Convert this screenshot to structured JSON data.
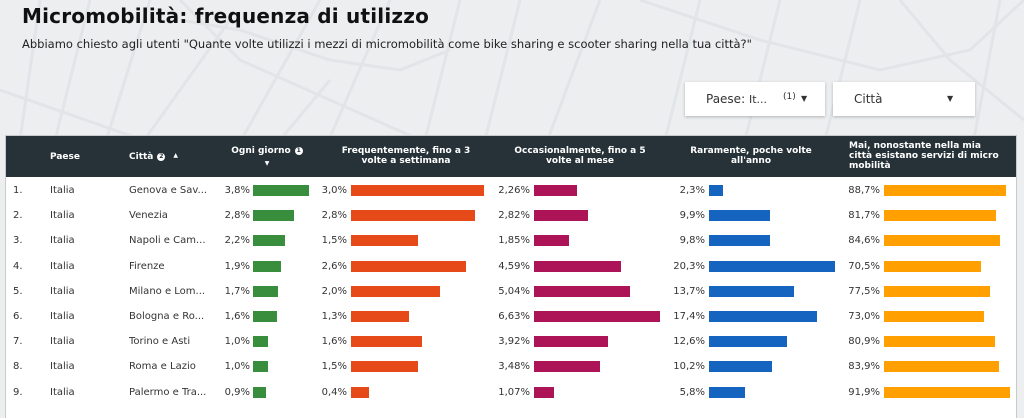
{
  "header": {
    "title": "Micromobilità: frequenza di utilizzo",
    "subtitle": "Abbiamo chiesto agli utenti \"Quante volte utilizzi i mezzi di micromobilità come bike sharing e scooter sharing nella tua città?\""
  },
  "filters": {
    "paese": {
      "label": "Paese:",
      "value": "It...",
      "count": "(1)",
      "icon": "caret-down-icon"
    },
    "citta": {
      "label": "Città",
      "icon": "caret-down-icon"
    }
  },
  "table": {
    "columns": {
      "paese": "Paese",
      "citta": "Città",
      "ogni_giorno": "Ogni giorno",
      "frequentemente": [
        "Frequentemente, fino a 3",
        "volte a settimana"
      ],
      "occasionalmente": [
        "Occasionalmente, fino a 5",
        "volte al mese"
      ],
      "raramente": [
        "Raramente, poche volte",
        "all'anno"
      ],
      "mai": [
        "Mai, nonostante nella mia",
        "città esistano servizi di micro",
        "mobilità"
      ]
    },
    "header_icons": {
      "citta_info": "2",
      "citta_sort": "▲",
      "ogni_info": "1",
      "ogni_sort": "▼"
    },
    "colors": {
      "ogni_giorno": "#388e3c",
      "frequentemente": "#e64a19",
      "occasionalmente": "#ad1457",
      "raramente": "#1565c0",
      "mai": "#ffa000",
      "header_bg": "#263238"
    },
    "rows": [
      {
        "rank": "1.",
        "paese": "Italia",
        "citta": "Genova e Sav...",
        "ogni": "3,8%",
        "freq": "3,0%",
        "occ": "2,26%",
        "rar": "2,3%",
        "mai": "88,7%"
      },
      {
        "rank": "2.",
        "paese": "Italia",
        "citta": "Venezia",
        "ogni": "2,8%",
        "freq": "2,8%",
        "occ": "2,82%",
        "rar": "9,9%",
        "mai": "81,7%"
      },
      {
        "rank": "3.",
        "paese": "Italia",
        "citta": "Napoli e Cam...",
        "ogni": "2,2%",
        "freq": "1,5%",
        "occ": "1,85%",
        "rar": "9,8%",
        "mai": "84,6%"
      },
      {
        "rank": "4.",
        "paese": "Italia",
        "citta": "Firenze",
        "ogni": "1,9%",
        "freq": "2,6%",
        "occ": "4,59%",
        "rar": "20,3%",
        "mai": "70,5%"
      },
      {
        "rank": "5.",
        "paese": "Italia",
        "citta": "Milano e Lom...",
        "ogni": "1,7%",
        "freq": "2,0%",
        "occ": "5,04%",
        "rar": "13,7%",
        "mai": "77,5%"
      },
      {
        "rank": "6.",
        "paese": "Italia",
        "citta": "Bologna e Ro...",
        "ogni": "1,6%",
        "freq": "1,3%",
        "occ": "6,63%",
        "rar": "17,4%",
        "mai": "73,0%"
      },
      {
        "rank": "7.",
        "paese": "Italia",
        "citta": "Torino e Asti",
        "ogni": "1,0%",
        "freq": "1,6%",
        "occ": "3,92%",
        "rar": "12,6%",
        "mai": "80,9%"
      },
      {
        "rank": "8.",
        "paese": "Italia",
        "citta": "Roma e Lazio",
        "ogni": "1,0%",
        "freq": "1,5%",
        "occ": "3,48%",
        "rar": "10,2%",
        "mai": "83,9%"
      },
      {
        "rank": "9.",
        "paese": "Italia",
        "citta": "Palermo e Tra...",
        "ogni": "0,9%",
        "freq": "0,4%",
        "occ": "1,07%",
        "rar": "5,8%",
        "mai": "91,9%"
      }
    ],
    "bar_values": {
      "ogni": [
        3.8,
        2.8,
        2.2,
        1.9,
        1.7,
        1.6,
        1.0,
        1.0,
        0.9
      ],
      "freq": [
        3.0,
        2.8,
        1.5,
        2.6,
        2.0,
        1.3,
        1.6,
        1.5,
        0.4
      ],
      "occ": [
        2.26,
        2.82,
        1.85,
        4.59,
        5.04,
        6.63,
        3.92,
        3.48,
        1.07
      ],
      "rar": [
        2.3,
        9.9,
        9.8,
        20.3,
        13.7,
        17.4,
        12.6,
        10.2,
        5.8
      ],
      "mai": [
        88.7,
        81.7,
        84.6,
        70.5,
        77.5,
        73.0,
        80.9,
        83.9,
        91.9
      ]
    }
  }
}
